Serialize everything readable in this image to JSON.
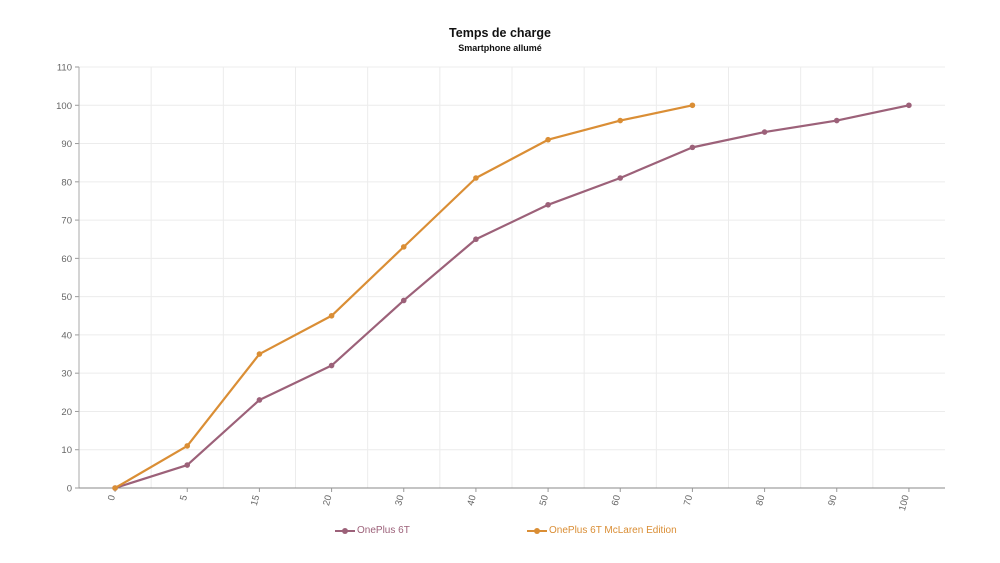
{
  "chart_data": {
    "type": "line",
    "title": "Temps de charge",
    "subtitle": "Smartphone allumé",
    "xlabel": "",
    "ylabel": "",
    "categories": [
      "0",
      "5",
      "15",
      "20",
      "30",
      "40",
      "50",
      "60",
      "70",
      "80",
      "90",
      "100"
    ],
    "ylim": [
      0,
      110
    ],
    "yticks": [
      0,
      10,
      20,
      30,
      40,
      50,
      60,
      70,
      80,
      90,
      100,
      110
    ],
    "grid": true,
    "legend_position": "bottom-center",
    "series": [
      {
        "name": "OnePlus 6T",
        "color": "#9c6179",
        "values": [
          0,
          6,
          23,
          32,
          49,
          65,
          74,
          81,
          89,
          93,
          96,
          100
        ]
      },
      {
        "name": "OnePlus 6T McLaren Edition",
        "color": "#da8e35",
        "values": [
          0,
          11,
          35,
          45,
          63,
          81,
          91,
          96,
          100,
          null,
          null,
          null
        ]
      }
    ]
  }
}
